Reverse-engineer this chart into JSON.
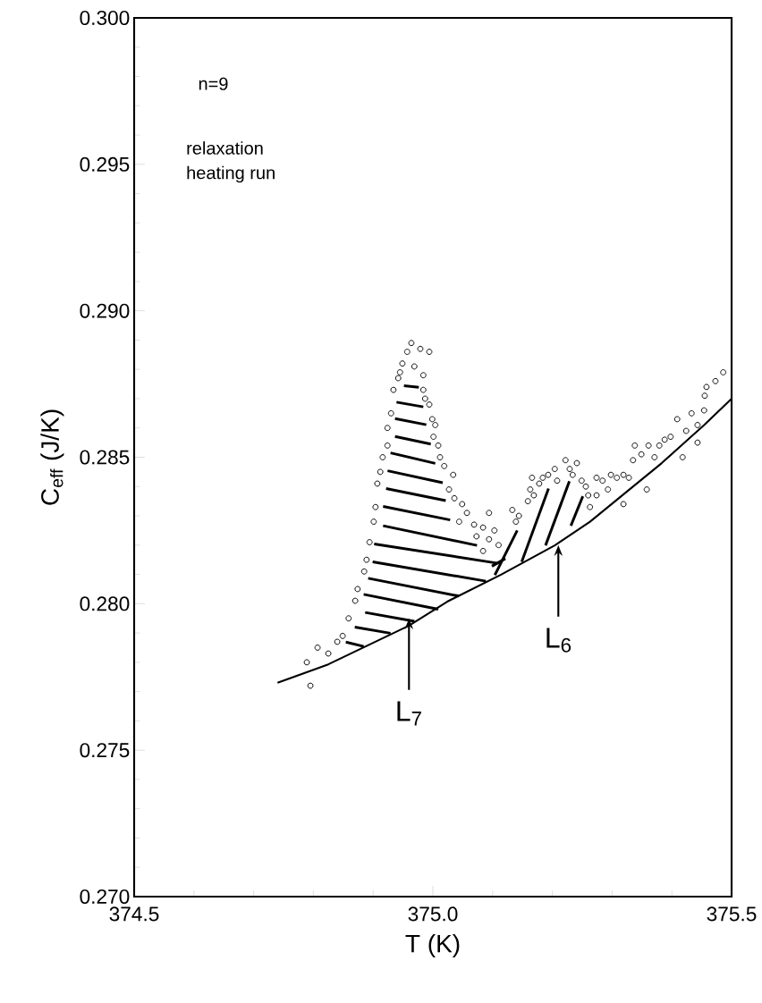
{
  "chart_data": {
    "type": "scatter",
    "xlabel": "T (K)",
    "ylabel": "C$_{eff}$ (J/K)",
    "xlim": [
      374.5,
      375.5
    ],
    "ylim": [
      0.27,
      0.3
    ],
    "xticks": [
      {
        "value": 374.5,
        "label": "374.5"
      },
      {
        "value": 375.0,
        "label": "375.0"
      },
      {
        "value": 375.5,
        "label": "375.5"
      }
    ],
    "yticks": [
      {
        "value": 0.27,
        "label": "0.270"
      },
      {
        "value": 0.275,
        "label": "0.275"
      },
      {
        "value": 0.28,
        "label": "0.280"
      },
      {
        "value": 0.285,
        "label": "0.285"
      },
      {
        "value": 0.29,
        "label": "0.290"
      },
      {
        "value": 0.295,
        "label": "0.295"
      },
      {
        "value": 0.3,
        "label": "0.300"
      }
    ],
    "series": [
      {
        "color": "#000000",
        "marker": "circle",
        "x": [
          374.795,
          374.789,
          374.807,
          374.825,
          374.84,
          374.849,
          374.859,
          374.87,
          374.874,
          374.885,
          374.889,
          374.894,
          374.901,
          374.904,
          374.907,
          374.912,
          374.916,
          374.924,
          374.924,
          374.93,
          374.934,
          374.942,
          374.945,
          374.949,
          374.957,
          374.964,
          374.979,
          374.994,
          374.969,
          374.984,
          374.984,
          374.987,
          374.994,
          374.999,
          375.004,
          375.001,
          375.009,
          375.012,
          375.019,
          375.034,
          375.027,
          375.036,
          375.049,
          375.057,
          375.044,
          375.069,
          375.084,
          375.103,
          375.073,
          375.094,
          375.084,
          375.094,
          375.11,
          375.133,
          375.139,
          375.144,
          375.159,
          375.163,
          375.169,
          375.166,
          375.178,
          375.184,
          375.193,
          375.204,
          375.208,
          375.222,
          375.229,
          375.234,
          375.241,
          375.249,
          375.256,
          375.26,
          375.263,
          375.274,
          375.274,
          375.284,
          375.293,
          375.298,
          375.308,
          375.319,
          375.319,
          375.328,
          375.335,
          375.338,
          375.349,
          375.358,
          375.361,
          375.371,
          375.379,
          375.388,
          375.398,
          375.409,
          375.418,
          375.424,
          375.433,
          375.443,
          375.443,
          375.454,
          375.455,
          375.458,
          375.473,
          375.486
        ],
        "values": [
          0.2772,
          0.278,
          0.2785,
          0.2783,
          0.2787,
          0.2789,
          0.2795,
          0.2801,
          0.2805,
          0.2811,
          0.2815,
          0.2821,
          0.2828,
          0.2833,
          0.2841,
          0.2845,
          0.285,
          0.2854,
          0.286,
          0.2865,
          0.2873,
          0.2877,
          0.2879,
          0.2882,
          0.2886,
          0.2889,
          0.2887,
          0.2886,
          0.2881,
          0.2878,
          0.2873,
          0.287,
          0.2868,
          0.2863,
          0.2861,
          0.2857,
          0.2854,
          0.285,
          0.2847,
          0.2844,
          0.2839,
          0.2836,
          0.2834,
          0.2831,
          0.2828,
          0.2827,
          0.2826,
          0.2825,
          0.2823,
          0.2822,
          0.2818,
          0.2831,
          0.282,
          0.2832,
          0.2828,
          0.283,
          0.2835,
          0.2839,
          0.2837,
          0.2843,
          0.2841,
          0.2843,
          0.2844,
          0.2846,
          0.2842,
          0.2849,
          0.2846,
          0.2844,
          0.2848,
          0.2842,
          0.284,
          0.2837,
          0.2833,
          0.2837,
          0.2843,
          0.2842,
          0.2839,
          0.2844,
          0.2843,
          0.2844,
          0.2834,
          0.2843,
          0.2849,
          0.2854,
          0.2851,
          0.2839,
          0.2854,
          0.285,
          0.2854,
          0.2856,
          0.2857,
          0.2863,
          0.285,
          0.2859,
          0.2865,
          0.2855,
          0.2861,
          0.2866,
          0.2871,
          0.2874,
          0.2876,
          0.2879
        ]
      },
      {
        "type": "line",
        "color": "#000000",
        "marker": "none",
        "x": [
          374.74,
          374.825,
          374.96,
          375.024,
          375.114,
          375.204,
          375.263,
          375.323,
          375.383,
          375.454,
          375.5
        ],
        "values": [
          0.2773,
          0.27793,
          0.27925,
          0.28007,
          0.28099,
          0.28199,
          0.2828,
          0.2838,
          0.2848,
          0.2861,
          0.287
        ]
      }
    ],
    "annotations": [
      "n=9",
      "relaxation",
      "heating run",
      {
        "text": "L$_{7}$",
        "x": 374.96,
        "y": 0.2795
      },
      {
        "text": "L$_{6}$",
        "x": 375.21,
        "y": 0.282
      }
    ]
  }
}
